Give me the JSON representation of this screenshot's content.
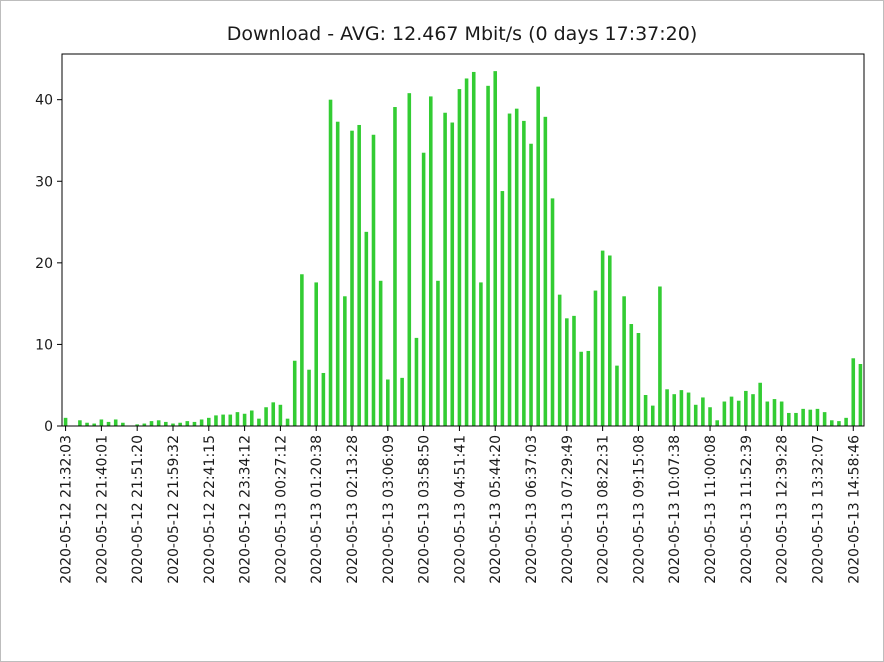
{
  "chart_data": {
    "type": "bar",
    "title": "Download - AVG: 12.467 Mbit/s (0 days 17:37:20)",
    "xlabel": "",
    "ylabel": "",
    "ylim": [
      0,
      45.6
    ],
    "yticks": [
      0,
      10,
      20,
      30,
      40
    ],
    "grid": false,
    "legend": "none",
    "bar_color": "#33cc33",
    "x_tick_labels": [
      {
        "index": 0,
        "label": "2020-05-12 21:32:03"
      },
      {
        "index": 5,
        "label": "2020-05-12 21:40:01"
      },
      {
        "index": 10,
        "label": "2020-05-12 21:51:20"
      },
      {
        "index": 15,
        "label": "2020-05-12 21:59:32"
      },
      {
        "index": 20,
        "label": "2020-05-12 22:41:15"
      },
      {
        "index": 25,
        "label": "2020-05-12 23:34:12"
      },
      {
        "index": 30,
        "label": "2020-05-13 00:27:12"
      },
      {
        "index": 35,
        "label": "2020-05-13 01:20:38"
      },
      {
        "index": 40,
        "label": "2020-05-13 02:13:28"
      },
      {
        "index": 45,
        "label": "2020-05-13 03:06:09"
      },
      {
        "index": 50,
        "label": "2020-05-13 03:58:50"
      },
      {
        "index": 55,
        "label": "2020-05-13 04:51:41"
      },
      {
        "index": 60,
        "label": "2020-05-13 05:44:20"
      },
      {
        "index": 65,
        "label": "2020-05-13 06:37:03"
      },
      {
        "index": 70,
        "label": "2020-05-13 07:29:49"
      },
      {
        "index": 75,
        "label": "2020-05-13 08:22:31"
      },
      {
        "index": 80,
        "label": "2020-05-13 09:15:08"
      },
      {
        "index": 85,
        "label": "2020-05-13 10:07:38"
      },
      {
        "index": 90,
        "label": "2020-05-13 11:00:08"
      },
      {
        "index": 95,
        "label": "2020-05-13 11:52:39"
      },
      {
        "index": 100,
        "label": "2020-05-13 12:39:28"
      },
      {
        "index": 105,
        "label": "2020-05-13 13:32:07"
      },
      {
        "index": 110,
        "label": "2020-05-13 14:58:46"
      }
    ],
    "values": [
      1.0,
      0.0,
      0.7,
      0.4,
      0.3,
      0.8,
      0.5,
      0.8,
      0.4,
      0.0,
      0.2,
      0.3,
      0.6,
      0.7,
      0.5,
      0.3,
      0.4,
      0.6,
      0.5,
      0.8,
      1.0,
      1.3,
      1.4,
      1.4,
      1.7,
      1.5,
      1.9,
      0.9,
      2.3,
      2.9,
      2.6,
      0.9,
      8.0,
      18.6,
      6.9,
      17.6,
      6.5,
      40.0,
      37.3,
      15.9,
      36.2,
      36.9,
      23.8,
      35.7,
      17.8,
      5.7,
      39.1,
      5.9,
      40.8,
      10.8,
      33.5,
      40.4,
      17.8,
      38.4,
      37.2,
      41.3,
      42.6,
      43.4,
      17.6,
      41.7,
      43.5,
      28.8,
      38.3,
      38.9,
      37.4,
      34.6,
      41.6,
      37.9,
      27.9,
      16.1,
      13.2,
      13.5,
      9.1,
      9.2,
      16.6,
      21.5,
      20.9,
      7.4,
      15.9,
      12.5,
      11.4,
      3.8,
      2.5,
      17.1,
      4.5,
      3.9,
      4.4,
      4.1,
      2.6,
      3.5,
      2.3,
      0.7,
      3.0,
      3.6,
      3.1,
      4.3,
      3.9,
      5.3,
      3.0,
      3.3,
      3.0,
      1.6,
      1.6,
      2.1,
      2.0,
      2.1,
      1.7,
      0.7,
      0.6,
      1.0,
      8.3,
      7.6
    ]
  }
}
